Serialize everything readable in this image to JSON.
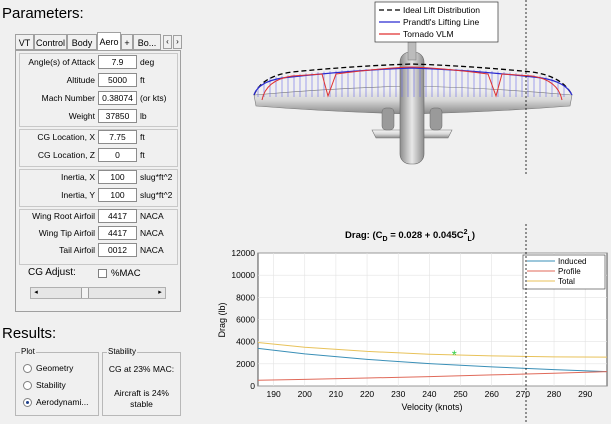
{
  "parameters_title": "Parameters:",
  "tabs": [
    {
      "label": "VT",
      "active": false
    },
    {
      "label": "Control",
      "active": false
    },
    {
      "label": "Body",
      "active": false
    },
    {
      "label": "Aero",
      "active": true
    },
    {
      "label": "+",
      "active": false
    },
    {
      "label": "Bo...",
      "active": false
    }
  ],
  "fields": [
    {
      "label": "Angle(s) of Attack",
      "value": "7.9",
      "unit": "deg"
    },
    {
      "label": "Altitude",
      "value": "5000",
      "unit": "ft"
    },
    {
      "label": "Mach Number",
      "value": "0.38074",
      "unit": "(or kts)"
    },
    {
      "label": "Weight",
      "value": "37850",
      "unit": "lb"
    },
    {
      "label": "CG Location, X",
      "value": "7.75",
      "unit": "ft"
    },
    {
      "label": "CG Location, Z",
      "value": "0",
      "unit": "ft"
    },
    {
      "label": "Inertia, X",
      "value": "100",
      "unit": "slug*ft^2"
    },
    {
      "label": "Inertia, Y",
      "value": "100",
      "unit": "slug*ft^2"
    },
    {
      "label": "Wing Root Airfoil",
      "value": "4417",
      "unit": "NACA"
    },
    {
      "label": "Wing Tip Airfoil",
      "value": "4417",
      "unit": "NACA"
    },
    {
      "label": "Tail Airfoil",
      "value": "0012",
      "unit": "NACA"
    }
  ],
  "cg_adjust": {
    "label": "CG Adjust:",
    "checkbox_label": "%MAC",
    "checked": false,
    "slider_position": 0.3
  },
  "results_title": "Results:",
  "plot_group": {
    "title": "Plot",
    "options": [
      {
        "label": "Geometry",
        "selected": false
      },
      {
        "label": "Stability",
        "selected": false
      },
      {
        "label": "Aerodynami...",
        "selected": true
      }
    ]
  },
  "stability_group": {
    "title": "Stability",
    "line1": "CG at 23% MAC:",
    "line2": "Aircraft is 24%",
    "line3": "stable"
  },
  "lift_legend": [
    {
      "name": "Ideal Lift Distribution",
      "color": "#000000",
      "dash": true
    },
    {
      "name": "Prandtl's Lifting Line",
      "color": "#2a2ad0",
      "dash": false
    },
    {
      "name": "Tornado VLM",
      "color": "#e03030",
      "dash": false
    }
  ],
  "chart_data": {
    "type": "line",
    "title_prefix": "Drag: (C",
    "title_sub": "D",
    "title_mid": " = 0.028 + 0.045C",
    "title_sup": "2",
    "title_sub2": "L",
    "title_suffix": ")",
    "xlabel": "Velocity (knots)",
    "ylabel": "Drag (lb)",
    "xlim": [
      185,
      297
    ],
    "ylim": [
      0,
      12000
    ],
    "xticks": [
      190,
      200,
      210,
      220,
      230,
      240,
      250,
      260,
      270,
      280,
      290
    ],
    "yticks": [
      0,
      2000,
      4000,
      6000,
      8000,
      10000,
      12000
    ],
    "grid": true,
    "legend_position": "top-right",
    "series": [
      {
        "name": "Induced",
        "color": "#3a8fb7",
        "x": [
          185,
          200,
          220,
          240,
          260,
          280,
          297
        ],
        "y": [
          3400,
          2900,
          2400,
          2020,
          1720,
          1480,
          1300
        ]
      },
      {
        "name": "Profile",
        "color": "#e06a5a",
        "x": [
          185,
          200,
          220,
          240,
          260,
          280,
          297
        ],
        "y": [
          520,
          600,
          720,
          850,
          1000,
          1150,
          1300
        ]
      },
      {
        "name": "Total",
        "color": "#e8c25a",
        "x": [
          185,
          200,
          220,
          240,
          260,
          280,
          297
        ],
        "y": [
          3920,
          3500,
          3120,
          2870,
          2720,
          2630,
          2600
        ]
      }
    ],
    "marker": {
      "x": 248,
      "y": 2850,
      "color": "#2ecc40",
      "symbol": "*"
    },
    "vertical_line_x": 275
  },
  "colors": {
    "panel_bg": "#f0f0f0",
    "plot_bg": "#ffffff"
  }
}
